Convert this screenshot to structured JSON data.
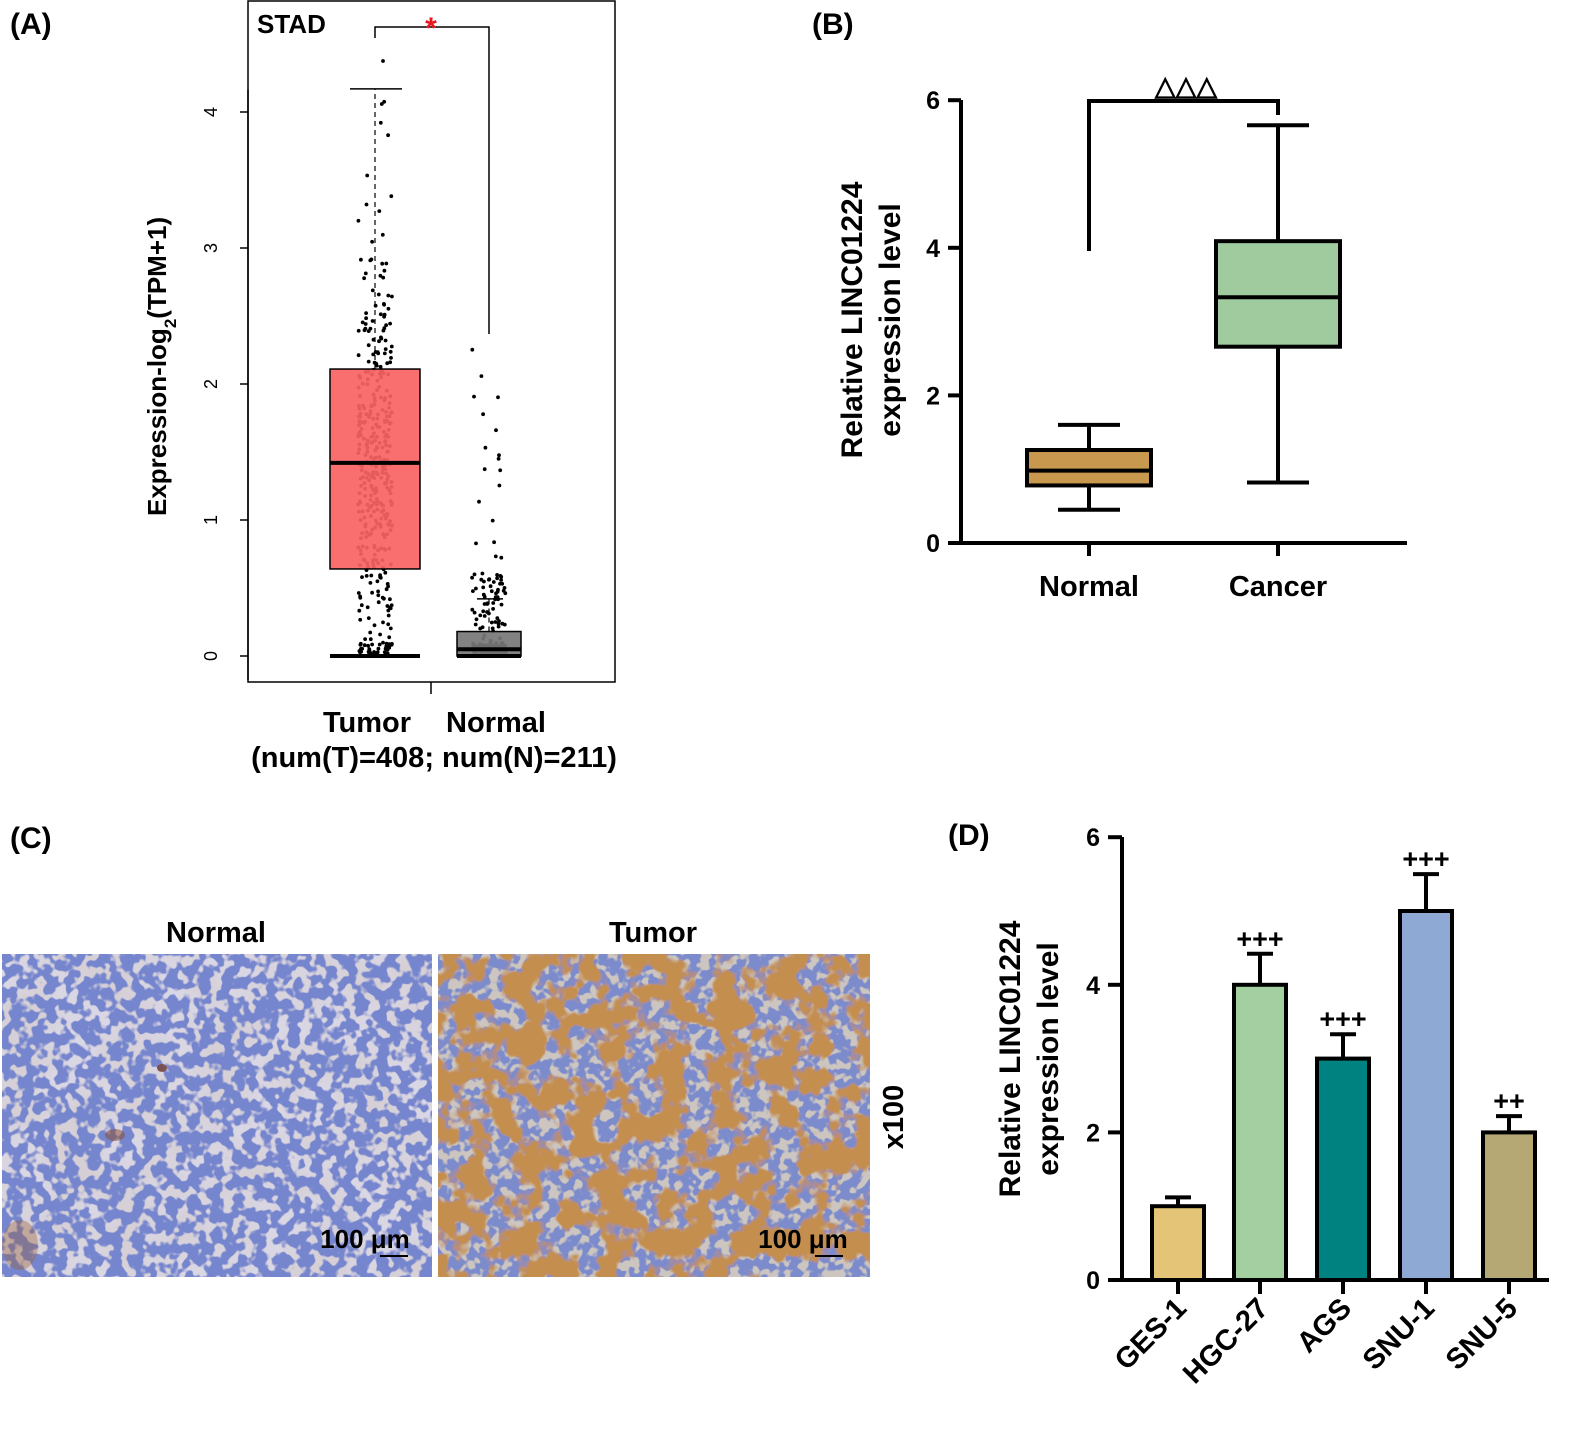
{
  "chart_data": [
    {
      "panel_label": "(A)",
      "type": "box",
      "title": "STAD",
      "ylabel_main": "Expression-log",
      "ylabel_sub": "2",
      "ylabel_tail": "(TPM+1)",
      "ylim": [
        -0.2,
        4.6
      ],
      "yticks": [
        "0",
        "1",
        "2",
        "3",
        "4"
      ],
      "significance": "*",
      "significance_color": "#e8171e",
      "xlabel_line1": [
        "Tumor",
        "Normal"
      ],
      "xlabel_line2": "(num(T)=408; num(N)=211)",
      "series": [
        {
          "name": "Tumor",
          "color": "#f86262",
          "min": 0.0,
          "q1": 0.64,
          "median": 1.42,
          "q3": 2.11,
          "whisker_high": 4.17,
          "n": 408,
          "point_max": 4.42
        },
        {
          "name": "Normal",
          "color": "#777777",
          "min": 0.0,
          "q1": 0.0,
          "median": 0.05,
          "q3": 0.18,
          "whisker_high": 0.42,
          "n": 211,
          "point_max": 2.27
        }
      ]
    },
    {
      "panel_label": "(B)",
      "type": "box",
      "ylabel": [
        "Relative LINC01224",
        "expression level"
      ],
      "ylim": [
        0,
        6
      ],
      "yticks": [
        "0",
        "2",
        "4",
        "6"
      ],
      "categories": [
        "Normal",
        "Cancer"
      ],
      "significance": "△△△",
      "series": [
        {
          "name": "Normal",
          "color": "#c9984f",
          "min": 0.45,
          "q1": 0.78,
          "median": 0.98,
          "q3": 1.26,
          "max": 1.6
        },
        {
          "name": "Cancer",
          "color": "#9fcb9f",
          "min": 0.82,
          "q1": 2.66,
          "median": 3.33,
          "q3": 4.09,
          "max": 5.66
        }
      ]
    },
    {
      "panel_label": "(D)",
      "type": "bar",
      "ylabel": [
        "Relative LINC01224",
        "expression level"
      ],
      "ylim": [
        0,
        6
      ],
      "yticks": [
        "0",
        "2",
        "4",
        "6"
      ],
      "categories": [
        "GES-1",
        "HGC-27",
        "AGS",
        "SNU-1",
        "SNU-5"
      ],
      "values": [
        1.0,
        4.0,
        3.0,
        5.0,
        2.0
      ],
      "errors": [
        0.12,
        0.42,
        0.33,
        0.5,
        0.22
      ],
      "significance": [
        "",
        "+++",
        "+++",
        "+++",
        "++"
      ],
      "colors": [
        "#e4c577",
        "#a3cfa1",
        "#008280",
        "#8eaad4",
        "#b5a874"
      ]
    }
  ],
  "panel_c": {
    "panel_label": "(C)",
    "images": [
      {
        "title": "Normal",
        "scale_bar": "100 μm"
      },
      {
        "title": "Tumor",
        "scale_bar": "100 μm"
      }
    ],
    "magnification": "x100"
  }
}
